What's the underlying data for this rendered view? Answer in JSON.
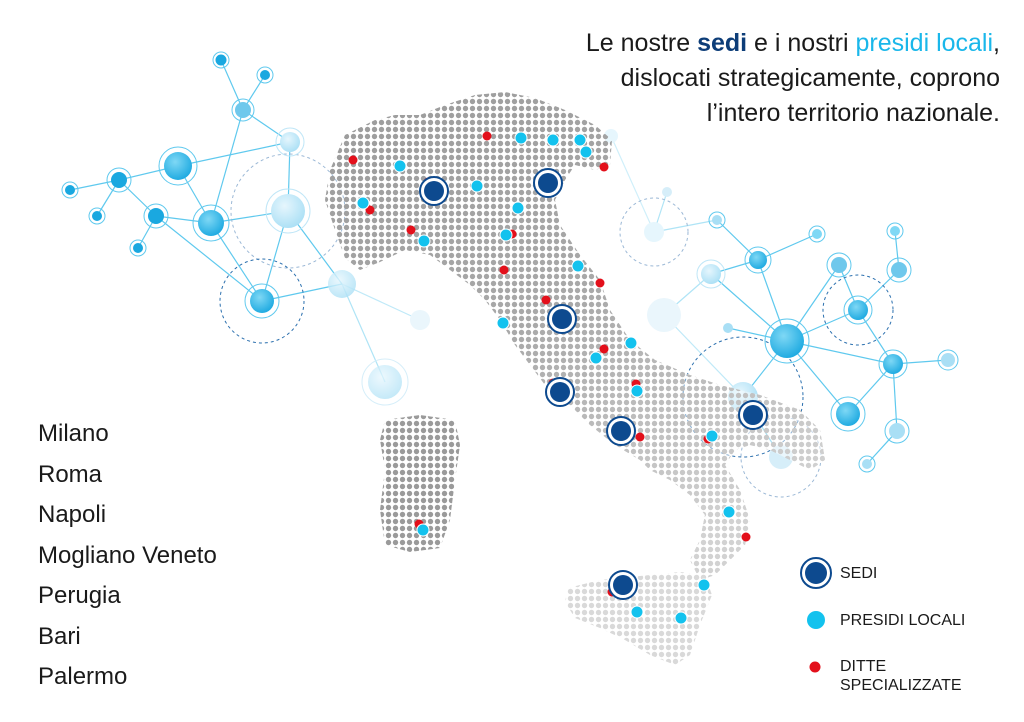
{
  "headline": {
    "line1_prefix": "Le nostre ",
    "line1_sedi": "sedi",
    "line1_middle": " e i nostri ",
    "line1_presidi": "presidi locali",
    "line1_suffix": ",",
    "line2": "dislocati strategicamente, coprono",
    "line3": "l’intero territorio nazionale."
  },
  "cities": [
    "Milano",
    "Roma",
    "Napoli",
    "Mogliano Veneto",
    "Perugia",
    "Bari",
    "Palermo"
  ],
  "legend": {
    "sedi": "SEDI",
    "presidi": "PRESIDI LOCALI",
    "ditte_line1": "DITTE",
    "ditte_line2": "SPECIALIZZATE"
  },
  "colors": {
    "sedi": "#0d4a8f",
    "presidi": "#13c2ee",
    "ditte": "#e3101b",
    "map_dots": "#9a9a9a",
    "network": "#5fc9ee"
  },
  "icons": [
    "sede-marker-icon",
    "presidio-marker-icon",
    "ditta-marker-icon",
    "italy-map-icon",
    "network-graph-icon"
  ]
}
